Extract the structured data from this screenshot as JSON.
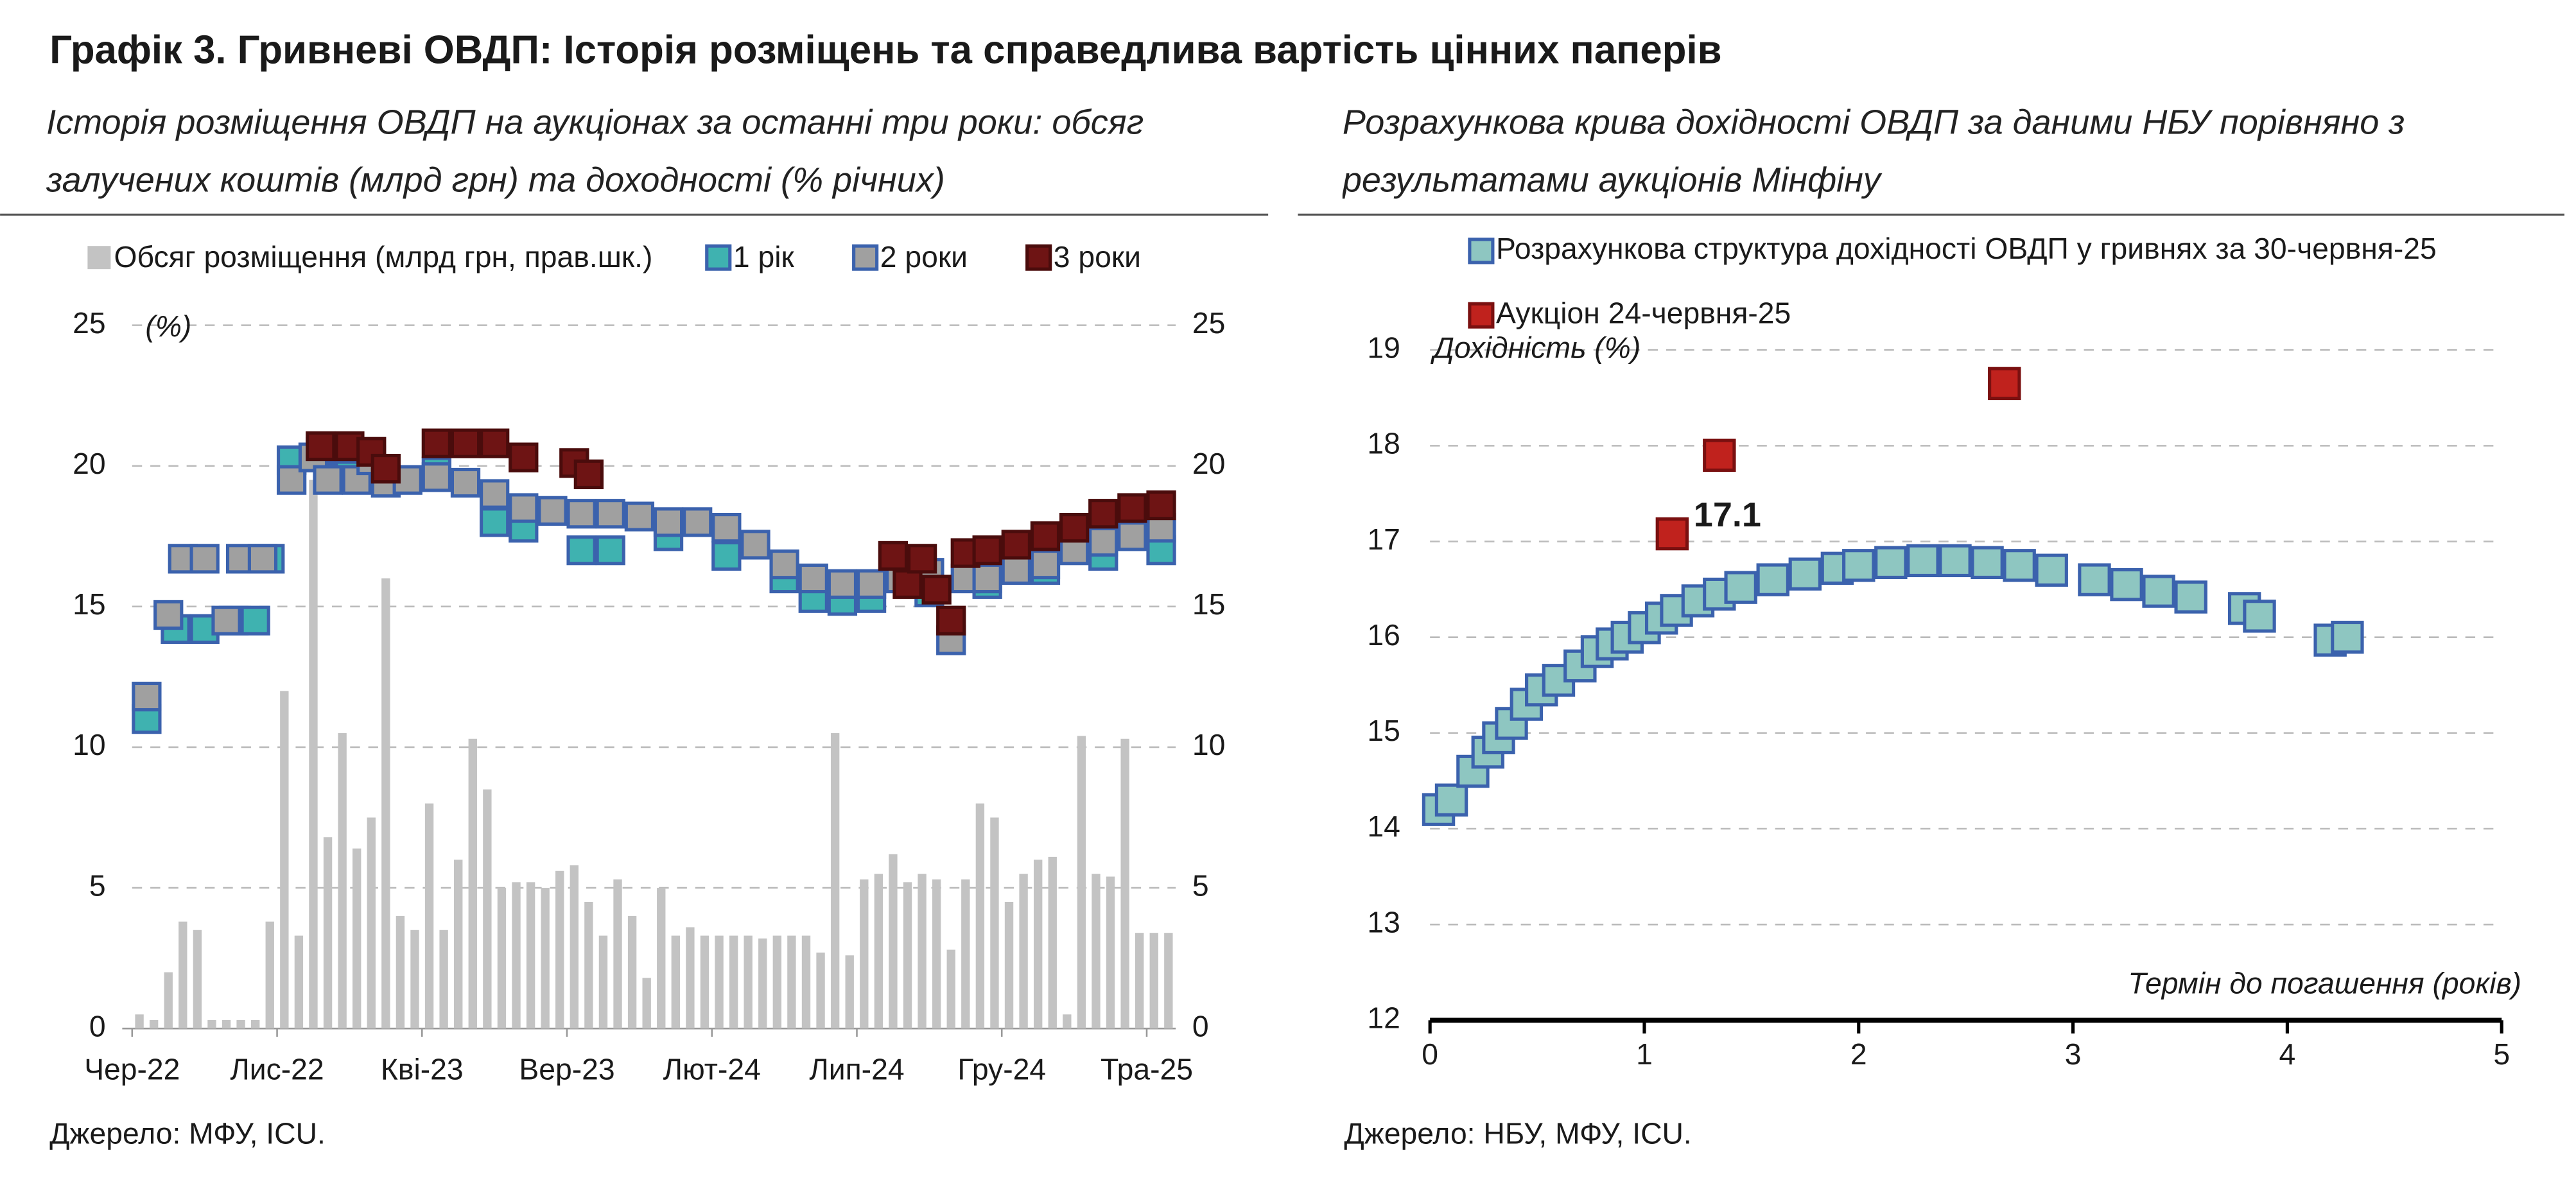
{
  "title": "Графік 3. Гривневі ОВДП: Історія розміщень та справедлива вартість цінних паперів",
  "chart_data": [
    {
      "type": "combo",
      "subtitle": "Історія розміщення ОВДП на аукціонах за останні три роки: обсяг залучених коштів (млрд грн) та доходності (% річних)",
      "y_label": "(%)",
      "xlim": [
        "2022-06",
        "2025-06"
      ],
      "xticks": [
        {
          "value": "2022-06",
          "label": "Чер-22"
        },
        {
          "value": "2022-11",
          "label": "Лис-22"
        },
        {
          "value": "2023-04",
          "label": "Кві-23"
        },
        {
          "value": "2023-09",
          "label": "Вер-23"
        },
        {
          "value": "2024-02",
          "label": "Лют-24"
        },
        {
          "value": "2024-07",
          "label": "Лип-24"
        },
        {
          "value": "2024-12",
          "label": "Гру-24"
        },
        {
          "value": "2025-05",
          "label": "Тра-25"
        }
      ],
      "ylim": [
        0,
        25
      ],
      "yticks": [
        0,
        5,
        10,
        15,
        20,
        25
      ],
      "y2lim": [
        0,
        25
      ],
      "y2ticks": [
        0,
        5,
        10,
        15,
        20,
        25
      ],
      "grid": true,
      "series": [
        {
          "name": "Обсяг розміщення (млрд грн, прав.шк.)",
          "type": "bar",
          "axis": "y2",
          "color": "#c3c3c3",
          "x": [
            "2022-06",
            "2022-06",
            "2022-07",
            "2022-07",
            "2022-08",
            "2022-08",
            "2022-09",
            "2022-09",
            "2022-10",
            "2022-10",
            "2022-11",
            "2022-11",
            "2022-12",
            "2022-12",
            "2023-01",
            "2023-01",
            "2023-02",
            "2023-02",
            "2023-03",
            "2023-03",
            "2023-04",
            "2023-04",
            "2023-05",
            "2023-05",
            "2023-06",
            "2023-06",
            "2023-07",
            "2023-07",
            "2023-08",
            "2023-08",
            "2023-09",
            "2023-09",
            "2023-10",
            "2023-10",
            "2023-11",
            "2023-11",
            "2023-12",
            "2023-12",
            "2024-01",
            "2024-01",
            "2024-02",
            "2024-02",
            "2024-03",
            "2024-03",
            "2024-04",
            "2024-04",
            "2024-05",
            "2024-05",
            "2024-06",
            "2024-06",
            "2024-07",
            "2024-07",
            "2024-08",
            "2024-08",
            "2024-09",
            "2024-09",
            "2024-10",
            "2024-10",
            "2024-11",
            "2024-11",
            "2024-12",
            "2024-12",
            "2025-01",
            "2025-01",
            "2025-02",
            "2025-02",
            "2025-03",
            "2025-03",
            "2025-04",
            "2025-04",
            "2025-05",
            "2025-05"
          ],
          "values": [
            0.5,
            0.3,
            2,
            3.8,
            3.5,
            0.3,
            0.3,
            0.3,
            0.3,
            3.8,
            12,
            3.3,
            19.5,
            6.8,
            10.5,
            6.4,
            7.5,
            16,
            4,
            3.5,
            8,
            3.5,
            6,
            10.3,
            8.5,
            5,
            5.2,
            5.2,
            5,
            5.6,
            5.8,
            4.5,
            3.3,
            5.3,
            4,
            1.8,
            5,
            3.3,
            3.6,
            3.3,
            3.3,
            3.3,
            3.3,
            3.2,
            3.3,
            3.3,
            3.3,
            2.7,
            10.5,
            2.6,
            5.3,
            5.5,
            6.2,
            5.2,
            5.5,
            5.3,
            2.8,
            5.3,
            8,
            7.5,
            4.5,
            5.5,
            6,
            6.1,
            0.5,
            10.4,
            5.5,
            5.4,
            10.3,
            3.4,
            3.4,
            3.4
          ]
        },
        {
          "name": "1 рік",
          "type": "scatter",
          "axis": "y",
          "color": "#3fb2b0",
          "edge": "#3b62ad",
          "x": [
            "2022-06",
            "2022-07",
            "2022-08",
            "2022-09",
            "2022-10",
            "2022-10",
            "2022-11",
            "2022-12",
            "2023-01",
            "2023-04",
            "2023-06",
            "2023-07",
            "2023-09",
            "2023-10",
            "2023-12",
            "2024-02",
            "2024-04",
            "2024-05",
            "2024-06",
            "2024-07",
            "2024-09",
            "2024-11",
            "2025-01",
            "2025-03",
            "2025-05"
          ],
          "values": [
            11.0,
            14.2,
            14.2,
            14.5,
            14.5,
            16.7,
            20.2,
            20.5,
            20.0,
            19.8,
            18.0,
            17.8,
            17.0,
            17.0,
            17.5,
            16.8,
            16.0,
            15.3,
            15.2,
            15.3,
            15.5,
            15.8,
            16.3,
            16.8,
            17.0
          ]
        },
        {
          "name": "2 роки",
          "type": "scatter",
          "axis": "y",
          "color": "#a0a0a0",
          "edge": "#3b62ad",
          "x": [
            "2022-06",
            "2022-07",
            "2022-07",
            "2022-08",
            "2022-09",
            "2022-09",
            "2022-10",
            "2022-11",
            "2022-12",
            "2022-12",
            "2023-01",
            "2023-01",
            "2023-02",
            "2023-02",
            "2023-03",
            "2023-04",
            "2023-05",
            "2023-06",
            "2023-07",
            "2023-08",
            "2023-09",
            "2023-10",
            "2023-11",
            "2023-12",
            "2024-01",
            "2024-02",
            "2024-03",
            "2024-04",
            "2024-05",
            "2024-06",
            "2024-07",
            "2024-08",
            "2024-09",
            "2024-10",
            "2024-10",
            "2024-11",
            "2024-12",
            "2025-01",
            "2025-02",
            "2025-03",
            "2025-04",
            "2025-05"
          ],
          "values": [
            11.8,
            14.7,
            16.7,
            16.7,
            14.5,
            16.7,
            16.7,
            19.5,
            20.3,
            19.5,
            20.6,
            19.5,
            20.2,
            19.4,
            19.5,
            19.6,
            19.4,
            19.0,
            18.5,
            18.4,
            18.3,
            18.3,
            18.2,
            18.0,
            18.0,
            17.8,
            17.2,
            16.5,
            16.0,
            15.8,
            15.8,
            16.0,
            16.2,
            13.8,
            16.0,
            16.0,
            16.3,
            16.5,
            17.0,
            17.3,
            17.5,
            17.8
          ]
        },
        {
          "name": "3 роки",
          "type": "scatter",
          "axis": "y",
          "color": "#6e1414",
          "edge": "#4a0c0c",
          "x": [
            "2022-12",
            "2023-01",
            "2023-02",
            "2023-02",
            "2023-04",
            "2023-05",
            "2023-06",
            "2023-07",
            "2023-09",
            "2023-09",
            "2024-08",
            "2024-08",
            "2024-09",
            "2024-09",
            "2024-10",
            "2024-10",
            "2024-11",
            "2024-12",
            "2025-01",
            "2025-02",
            "2025-03",
            "2025-04",
            "2025-05"
          ],
          "values": [
            20.7,
            20.7,
            20.5,
            19.9,
            20.8,
            20.8,
            20.8,
            20.3,
            20.1,
            19.7,
            16.8,
            15.8,
            16.7,
            15.6,
            14.5,
            16.9,
            17.0,
            17.2,
            17.5,
            17.8,
            18.3,
            18.5,
            18.6
          ]
        }
      ],
      "source": "Джерело: МФУ, ICU."
    },
    {
      "type": "scatter",
      "subtitle": "Розрахункова крива дохідності ОВДП за даними НБУ порівняно з результатами аукціонів Мінфіну",
      "x_label": "Термін до погашення (років)",
      "y_label": "Дохідність (%)",
      "xlim": [
        0,
        5
      ],
      "xticks": [
        0,
        1,
        2,
        3,
        4,
        5
      ],
      "ylim": [
        12,
        19
      ],
      "yticks": [
        12,
        13,
        14,
        15,
        16,
        17,
        18,
        19
      ],
      "grid": true,
      "series": [
        {
          "name": "Розрахункова структура дохідності ОВДП у гривнях за 30-червня-25",
          "color": "#8ec6c1",
          "edge": "#3b62ad",
          "x": [
            0.04,
            0.1,
            0.2,
            0.27,
            0.32,
            0.38,
            0.45,
            0.52,
            0.6,
            0.7,
            0.78,
            0.85,
            0.92,
            1.0,
            1.08,
            1.15,
            1.25,
            1.35,
            1.45,
            1.6,
            1.75,
            1.9,
            2.0,
            2.15,
            2.3,
            2.45,
            2.6,
            2.75,
            2.9,
            3.1,
            3.25,
            3.4,
            3.55,
            3.8,
            3.87,
            4.2,
            4.28
          ],
          "values": [
            14.2,
            14.3,
            14.6,
            14.8,
            14.95,
            15.1,
            15.3,
            15.45,
            15.55,
            15.7,
            15.85,
            15.93,
            16.0,
            16.1,
            16.2,
            16.28,
            16.38,
            16.45,
            16.52,
            16.6,
            16.66,
            16.72,
            16.75,
            16.78,
            16.8,
            16.8,
            16.78,
            16.75,
            16.7,
            16.6,
            16.55,
            16.48,
            16.42,
            16.3,
            16.22,
            15.97,
            16.0
          ]
        },
        {
          "name": "Аукціон 24-червня-25",
          "color": "#c0221d",
          "edge": "#7a1010",
          "x": [
            1.13,
            1.35,
            2.68
          ],
          "values": [
            17.08,
            17.9,
            18.65
          ],
          "value_labels": [
            "17.1",
            null,
            null
          ]
        }
      ],
      "source": "Джерело: НБУ, МФУ, ICU."
    }
  ]
}
